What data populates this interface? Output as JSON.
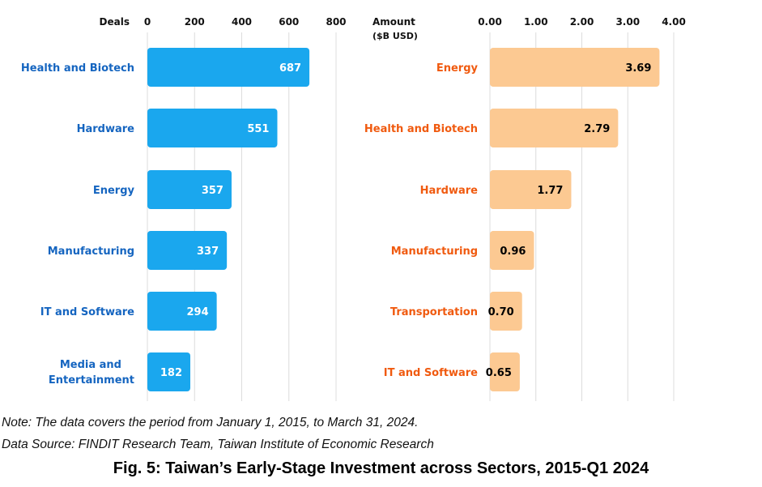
{
  "chart_data": [
    {
      "type": "bar",
      "orientation": "horizontal",
      "xlabel": "Deals",
      "ticks": [
        "0",
        "200",
        "400",
        "600",
        "800"
      ],
      "xlim": [
        0,
        800
      ],
      "categories": [
        "Health and Biotech",
        "Hardware",
        "Energy",
        "Manufacturing",
        "IT and Software",
        "Media and Entertainment"
      ],
      "values": [
        687,
        551,
        357,
        337,
        294,
        182
      ],
      "data_labels": [
        "687",
        "551",
        "357",
        "337",
        "294",
        "182"
      ],
      "bar_color": "#1aa7ee",
      "category_label_color": "#1565c0",
      "value_label_color": "#ffffff"
    },
    {
      "type": "bar",
      "orientation": "horizontal",
      "xlabel": "Amount",
      "xlabel_unit": "($B USD)",
      "ticks": [
        "0.00",
        "1.00",
        "2.00",
        "3.00",
        "4.00"
      ],
      "xlim": [
        0,
        4
      ],
      "categories": [
        "Energy",
        "Health and Biotech",
        "Hardware",
        "Manufacturing",
        "Transportation",
        "IT and Software"
      ],
      "values": [
        3.69,
        2.79,
        1.77,
        0.96,
        0.7,
        0.65
      ],
      "data_labels": [
        "3.69",
        "2.79",
        "1.77",
        "0.96",
        "0.70",
        "0.65"
      ],
      "bar_color": "#fcc992",
      "category_label_color": "#f05a0f",
      "value_label_color": "#000000"
    }
  ],
  "footer": {
    "note": "Note: The data covers the period from January 1, 2015, to March 31, 2024.",
    "source": "Data Source: FINDIT Research Team, Taiwan Institute of Economic Research",
    "caption": "Fig. 5: Taiwan’s Early-Stage Investment across Sectors, 2015-Q1 2024"
  }
}
